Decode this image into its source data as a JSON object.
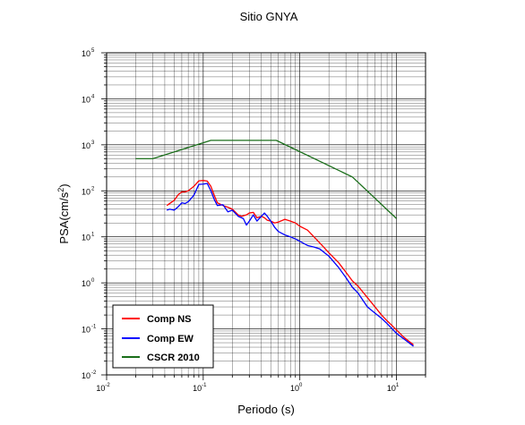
{
  "chart_data": {
    "type": "line",
    "title": "Sitio GNYA",
    "xlabel": "Periodo (s)",
    "ylabel_base": "PSA(cm/s",
    "ylabel_exp": "2",
    "ylabel_close": ")",
    "x_scale": "log",
    "y_scale": "log",
    "xlim": [
      0.01,
      20
    ],
    "ylim": [
      0.01,
      100000
    ],
    "grid": true,
    "legend_position": "bottom-left",
    "x_ticks": [
      {
        "base": "10",
        "exp": "-2",
        "value": 0.01
      },
      {
        "base": "10",
        "exp": "-1",
        "value": 0.1
      },
      {
        "base": "10",
        "exp": "0",
        "value": 1
      },
      {
        "base": "10",
        "exp": "1",
        "value": 10
      }
    ],
    "y_ticks": [
      {
        "base": "10",
        "exp": "-2",
        "value": 0.01
      },
      {
        "base": "10",
        "exp": "-1",
        "value": 0.1
      },
      {
        "base": "10",
        "exp": "0",
        "value": 1
      },
      {
        "base": "10",
        "exp": "1",
        "value": 10
      },
      {
        "base": "10",
        "exp": "2",
        "value": 100
      },
      {
        "base": "10",
        "exp": "3",
        "value": 1000
      },
      {
        "base": "10",
        "exp": "4",
        "value": 10000
      },
      {
        "base": "10",
        "exp": "5",
        "value": 100000
      }
    ],
    "series": [
      {
        "name": "Comp NS",
        "color": "#ff0000",
        "points": [
          [
            0.042,
            48
          ],
          [
            0.05,
            62
          ],
          [
            0.055,
            82
          ],
          [
            0.06,
            95
          ],
          [
            0.065,
            95
          ],
          [
            0.07,
            100
          ],
          [
            0.08,
            125
          ],
          [
            0.09,
            165
          ],
          [
            0.1,
            168
          ],
          [
            0.11,
            163
          ],
          [
            0.12,
            125
          ],
          [
            0.13,
            80
          ],
          [
            0.14,
            55
          ],
          [
            0.16,
            48
          ],
          [
            0.18,
            44
          ],
          [
            0.2,
            40
          ],
          [
            0.23,
            30
          ],
          [
            0.25,
            28
          ],
          [
            0.28,
            30
          ],
          [
            0.3,
            33
          ],
          [
            0.33,
            34
          ],
          [
            0.36,
            26
          ],
          [
            0.4,
            28
          ],
          [
            0.43,
            26
          ],
          [
            0.46,
            23
          ],
          [
            0.5,
            22
          ],
          [
            0.55,
            20
          ],
          [
            0.6,
            21
          ],
          [
            0.7,
            24
          ],
          [
            0.8,
            22
          ],
          [
            0.9,
            20
          ],
          [
            1.0,
            17
          ],
          [
            1.2,
            14
          ],
          [
            1.4,
            10
          ],
          [
            1.7,
            6.5
          ],
          [
            2.0,
            4.5
          ],
          [
            2.5,
            2.8
          ],
          [
            3.0,
            1.7
          ],
          [
            3.5,
            1.1
          ],
          [
            4.0,
            0.85
          ],
          [
            5.0,
            0.48
          ],
          [
            6.0,
            0.3
          ],
          [
            7.0,
            0.2
          ],
          [
            8.0,
            0.15
          ],
          [
            10.0,
            0.095
          ],
          [
            12.0,
            0.065
          ],
          [
            15.0,
            0.045
          ]
        ]
      },
      {
        "name": "Comp EW",
        "color": "#0000ff",
        "points": [
          [
            0.042,
            38
          ],
          [
            0.045,
            40
          ],
          [
            0.05,
            38
          ],
          [
            0.055,
            45
          ],
          [
            0.06,
            55
          ],
          [
            0.065,
            53
          ],
          [
            0.07,
            58
          ],
          [
            0.08,
            80
          ],
          [
            0.09,
            138
          ],
          [
            0.1,
            140
          ],
          [
            0.11,
            145
          ],
          [
            0.12,
            100
          ],
          [
            0.13,
            65
          ],
          [
            0.14,
            48
          ],
          [
            0.16,
            50
          ],
          [
            0.18,
            35
          ],
          [
            0.2,
            38
          ],
          [
            0.23,
            28
          ],
          [
            0.26,
            25
          ],
          [
            0.28,
            18
          ],
          [
            0.3,
            22
          ],
          [
            0.33,
            30
          ],
          [
            0.36,
            22
          ],
          [
            0.4,
            28
          ],
          [
            0.43,
            33
          ],
          [
            0.46,
            28
          ],
          [
            0.5,
            22
          ],
          [
            0.55,
            16
          ],
          [
            0.6,
            13
          ],
          [
            0.7,
            11
          ],
          [
            0.8,
            10
          ],
          [
            0.9,
            9
          ],
          [
            1.0,
            8
          ],
          [
            1.2,
            6.5
          ],
          [
            1.4,
            6
          ],
          [
            1.6,
            5.5
          ],
          [
            2.0,
            3.8
          ],
          [
            2.5,
            2.2
          ],
          [
            3.0,
            1.3
          ],
          [
            3.5,
            0.8
          ],
          [
            4.0,
            0.6
          ],
          [
            5.0,
            0.3
          ],
          [
            6.0,
            0.22
          ],
          [
            7.0,
            0.17
          ],
          [
            8.0,
            0.13
          ],
          [
            10.0,
            0.08
          ],
          [
            12.0,
            0.06
          ],
          [
            15.0,
            0.042
          ]
        ]
      },
      {
        "name": "CSCR 2010",
        "color": "#1a6e1a",
        "points": [
          [
            0.02,
            500
          ],
          [
            0.03,
            500
          ],
          [
            0.12,
            1250
          ],
          [
            0.57,
            1250
          ],
          [
            3.5,
            200
          ],
          [
            10.0,
            25
          ]
        ]
      }
    ]
  }
}
